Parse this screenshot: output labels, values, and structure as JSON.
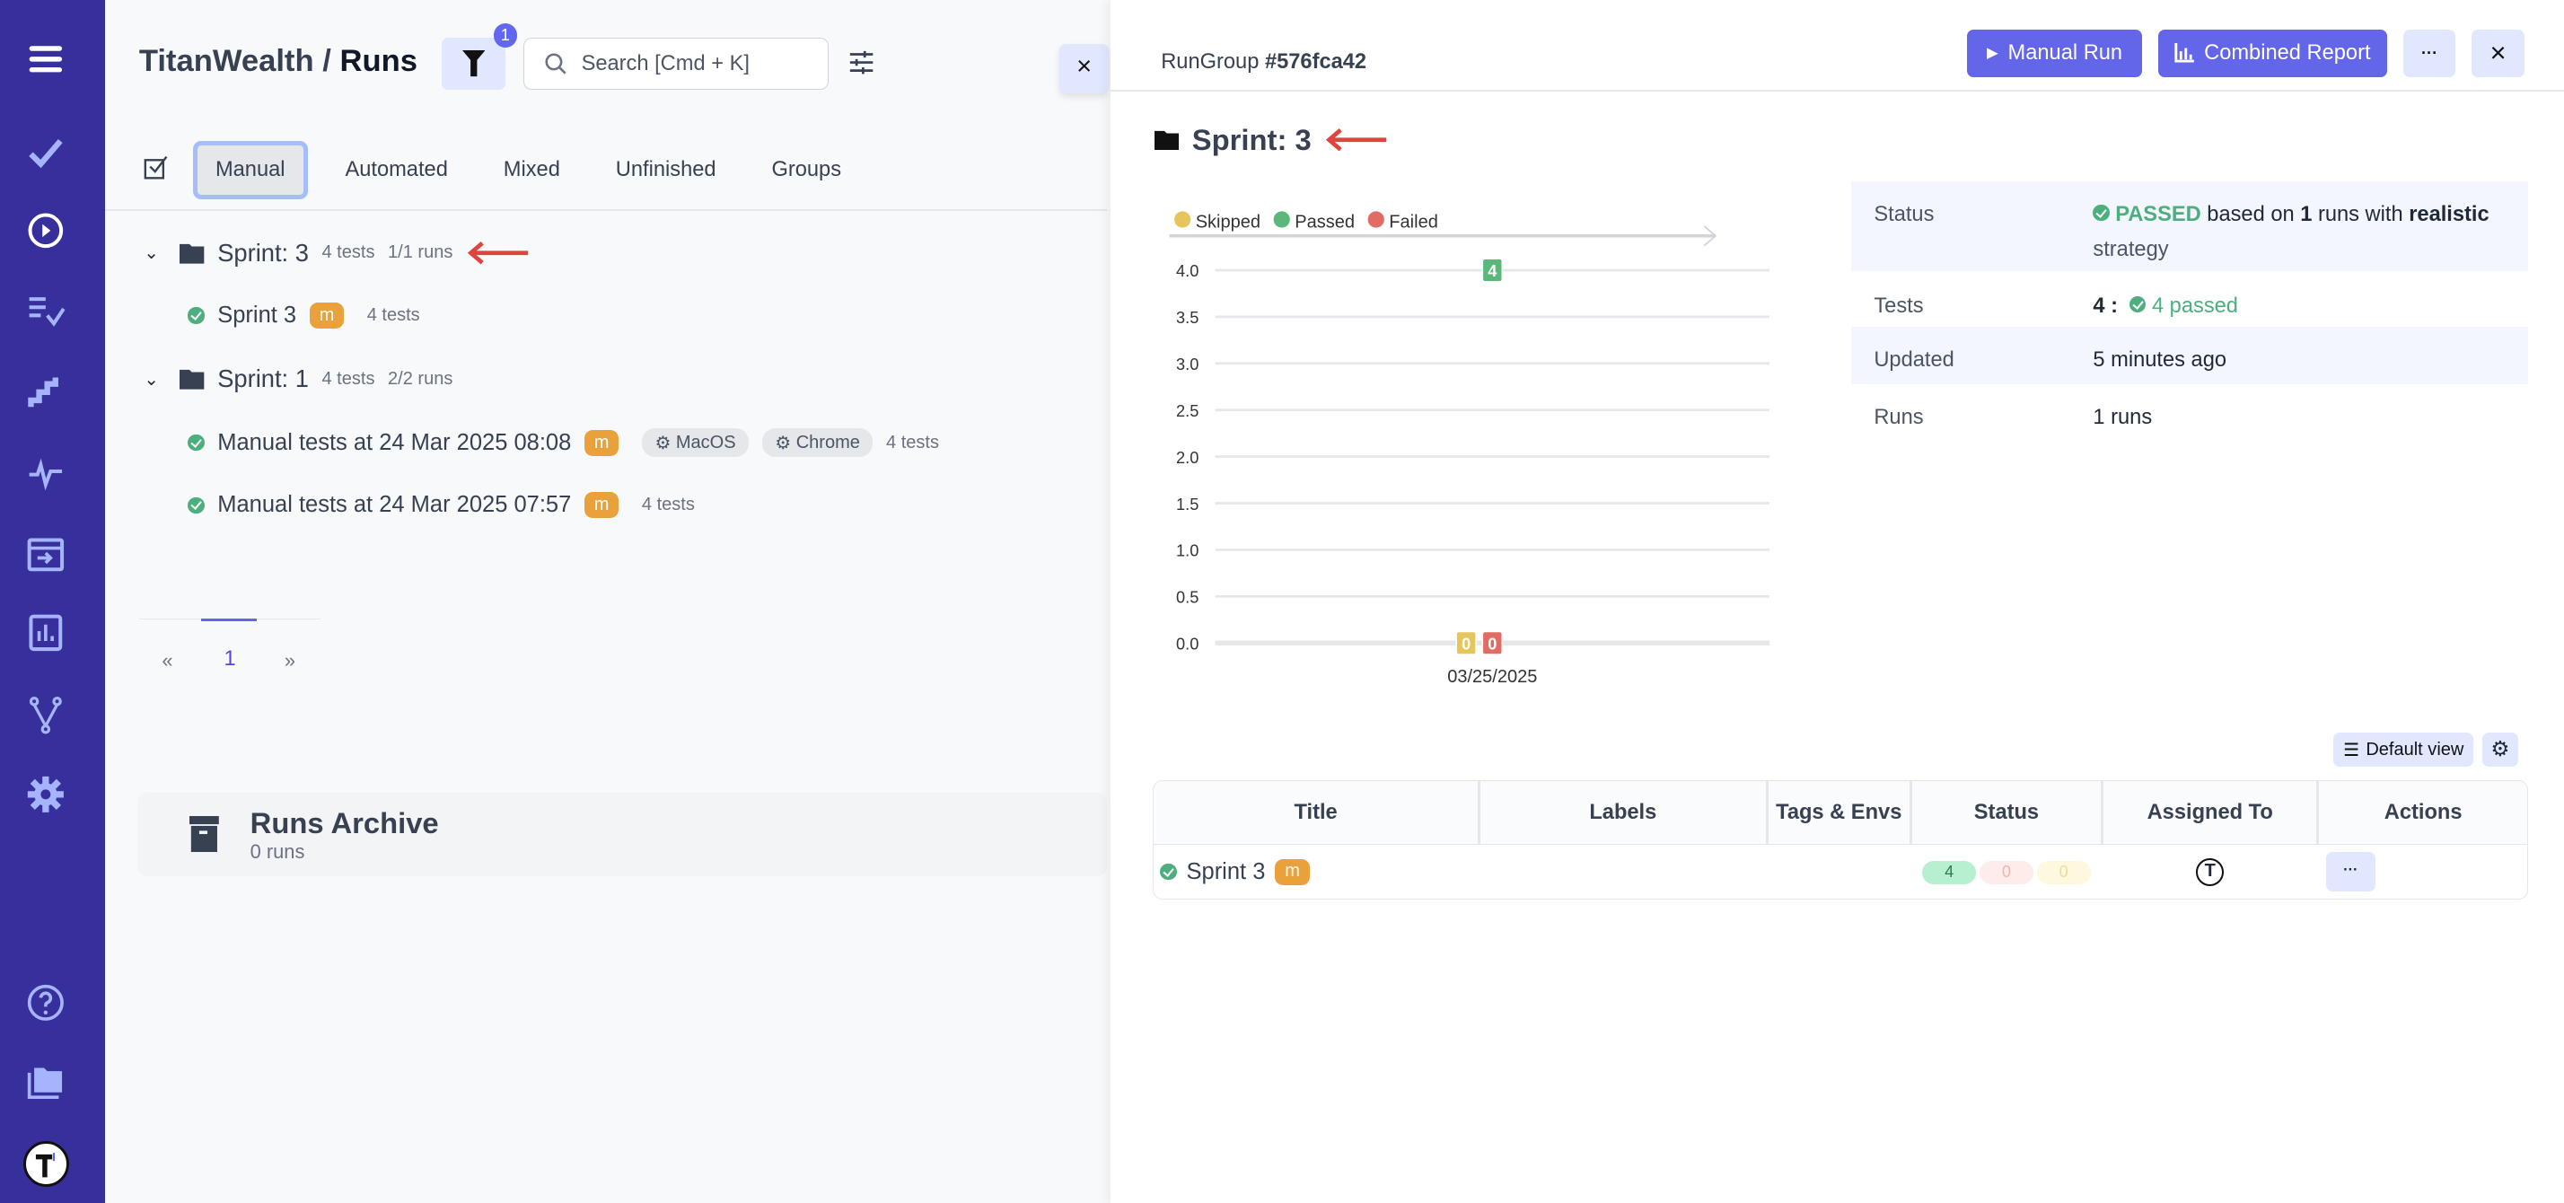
{
  "sidebar": {
    "items": [
      "menu-icon",
      "check-icon",
      "play-circle-icon",
      "list-check-icon",
      "steps-icon",
      "pulse-icon",
      "import-icon",
      "bar-chart-icon",
      "branch-icon",
      "gear-icon"
    ],
    "bottom": [
      "help-icon",
      "folders-icon",
      "avatar"
    ]
  },
  "header": {
    "project": "TitanWealth",
    "separator": "/",
    "page": "Runs",
    "filter_count": "1",
    "search_placeholder": "Search [Cmd + K]",
    "close_label": "×"
  },
  "tabs": [
    {
      "label": "Manual",
      "active": true
    },
    {
      "label": "Automated"
    },
    {
      "label": "Mixed"
    },
    {
      "label": "Unfinished"
    },
    {
      "label": "Groups"
    }
  ],
  "groups": [
    {
      "title": "Sprint: 3",
      "tests": "4 tests",
      "runs": "1/1 runs",
      "items": [
        {
          "title": "Sprint 3",
          "badge": "m",
          "tests": "4 tests"
        }
      ]
    },
    {
      "title": "Sprint: 1",
      "tests": "4 tests",
      "runs": "2/2 runs",
      "items": [
        {
          "title": "Manual tests at 24 Mar 2025 08:08",
          "badge": "m",
          "envs": [
            "MacOS",
            "Chrome"
          ],
          "tests": "4 tests"
        },
        {
          "title": "Manual tests at 24 Mar 2025 07:57",
          "badge": "m",
          "tests": "4 tests"
        }
      ]
    }
  ],
  "pagination": {
    "prev": "«",
    "page": "1",
    "next": "»"
  },
  "archive": {
    "title": "Runs Archive",
    "count": "0 runs"
  },
  "detail": {
    "rungroup_label": "RunGroup",
    "rungroup_id": "#576fca42",
    "manual_run": "Manual Run",
    "combined_report": "Combined Report",
    "more": "···",
    "close": "×",
    "title": "Sprint: 3",
    "info": {
      "status_k": "Status",
      "status_v": "PASSED",
      "status_mid": " based on ",
      "status_runs": "1",
      "status_mid2": " runs with ",
      "status_strategy": "realistic",
      "status_end": "strategy",
      "tests_k": "Tests",
      "tests_total": "4 :",
      "tests_passed": "4 passed",
      "updated_k": "Updated",
      "updated_v": "5 minutes ago",
      "runs_k": "Runs",
      "runs_v": "1 runs"
    },
    "default_view": "Default view",
    "table": {
      "headers": [
        "Title",
        "Labels",
        "Tags & Envs",
        "Status",
        "Assigned To",
        "Actions"
      ],
      "rows": [
        {
          "title": "Sprint 3",
          "badge": "m",
          "passed": "4",
          "failed": "0",
          "skipped": "0",
          "actions": "···"
        }
      ]
    }
  },
  "colors": {
    "sidebar": "#372f9b",
    "accent": "#6366e8",
    "passed": "#5cb87a",
    "failed": "#e06c63",
    "skipped": "#e6c55a",
    "badge": "#e9a23b"
  },
  "chart_data": {
    "type": "line",
    "legend": [
      "Skipped",
      "Passed",
      "Failed"
    ],
    "legend_position": "top-left",
    "categories": [
      "03/25/2025"
    ],
    "series": [
      {
        "name": "Skipped",
        "values": [
          0
        ]
      },
      {
        "name": "Passed",
        "values": [
          4
        ]
      },
      {
        "name": "Failed",
        "values": [
          0
        ]
      }
    ],
    "yticks": [
      "0.0",
      "0.5",
      "1.0",
      "1.5",
      "2.0",
      "2.5",
      "3.0",
      "3.5",
      "4.0"
    ],
    "ylim": [
      0,
      4
    ],
    "grid": true
  }
}
